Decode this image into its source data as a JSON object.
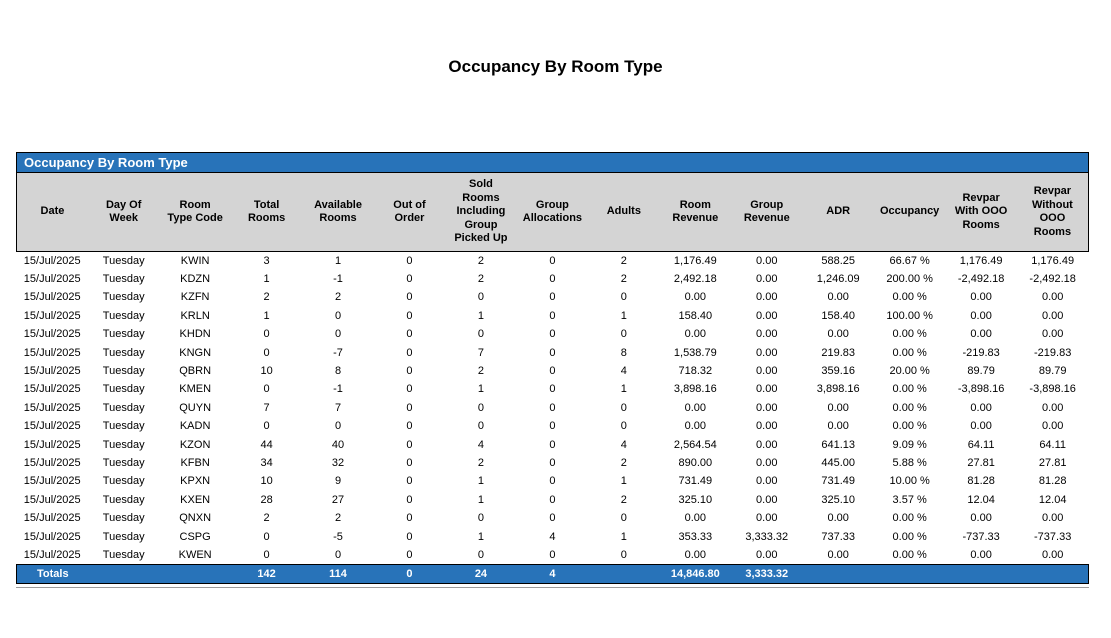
{
  "page_title": "Occupancy By Room Type",
  "colors": {
    "accent_blue": "#2873B9",
    "header_band_gray": "#D4D4D4",
    "totals_text": "#FFFFFF",
    "body_text": "#000000"
  },
  "table": {
    "title": "Occupancy By Room Type",
    "columns": [
      {
        "key": "date",
        "label": "Date"
      },
      {
        "key": "day-of-week",
        "label": "Day Of\nWeek"
      },
      {
        "key": "room-type-code",
        "label": "Room\nType Code"
      },
      {
        "key": "total-rooms",
        "label": "Total\nRooms"
      },
      {
        "key": "available-rooms",
        "label": "Available\nRooms"
      },
      {
        "key": "out-of-order",
        "label": "Out of\nOrder"
      },
      {
        "key": "sold-rooms",
        "label": "Sold\nRooms\nIncluding\nGroup\nPicked Up"
      },
      {
        "key": "group-allocations",
        "label": "Group\nAllocations"
      },
      {
        "key": "adults",
        "label": "Adults"
      },
      {
        "key": "room-revenue",
        "label": "Room\nRevenue"
      },
      {
        "key": "group-revenue",
        "label": "Group\nRevenue"
      },
      {
        "key": "adr",
        "label": "ADR"
      },
      {
        "key": "occupancy",
        "label": "Occupancy"
      },
      {
        "key": "revpar-with-ooo",
        "label": "Revpar\nWith OOO\nRooms"
      },
      {
        "key": "revpar-without-ooo",
        "label": "Revpar\nWithout\nOOO\nRooms"
      }
    ],
    "rows": [
      [
        "15/Jul/2025",
        "Tuesday",
        "KWIN",
        "3",
        "1",
        "0",
        "2",
        "0",
        "2",
        "1,176.49",
        "0.00",
        "588.25",
        "66.67 %",
        "1,176.49",
        "1,176.49"
      ],
      [
        "15/Jul/2025",
        "Tuesday",
        "KDZN",
        "1",
        "-1",
        "0",
        "2",
        "0",
        "2",
        "2,492.18",
        "0.00",
        "1,246.09",
        "200.00 %",
        "-2,492.18",
        "-2,492.18"
      ],
      [
        "15/Jul/2025",
        "Tuesday",
        "KZFN",
        "2",
        "2",
        "0",
        "0",
        "0",
        "0",
        "0.00",
        "0.00",
        "0.00",
        "0.00 %",
        "0.00",
        "0.00"
      ],
      [
        "15/Jul/2025",
        "Tuesday",
        "KRLN",
        "1",
        "0",
        "0",
        "1",
        "0",
        "1",
        "158.40",
        "0.00",
        "158.40",
        "100.00 %",
        "0.00",
        "0.00"
      ],
      [
        "15/Jul/2025",
        "Tuesday",
        "KHDN",
        "0",
        "0",
        "0",
        "0",
        "0",
        "0",
        "0.00",
        "0.00",
        "0.00",
        "0.00 %",
        "0.00",
        "0.00"
      ],
      [
        "15/Jul/2025",
        "Tuesday",
        "KNGN",
        "0",
        "-7",
        "0",
        "7",
        "0",
        "8",
        "1,538.79",
        "0.00",
        "219.83",
        "0.00 %",
        "-219.83",
        "-219.83"
      ],
      [
        "15/Jul/2025",
        "Tuesday",
        "QBRN",
        "10",
        "8",
        "0",
        "2",
        "0",
        "4",
        "718.32",
        "0.00",
        "359.16",
        "20.00 %",
        "89.79",
        "89.79"
      ],
      [
        "15/Jul/2025",
        "Tuesday",
        "KMEN",
        "0",
        "-1",
        "0",
        "1",
        "0",
        "1",
        "3,898.16",
        "0.00",
        "3,898.16",
        "0.00 %",
        "-3,898.16",
        "-3,898.16"
      ],
      [
        "15/Jul/2025",
        "Tuesday",
        "QUYN",
        "7",
        "7",
        "0",
        "0",
        "0",
        "0",
        "0.00",
        "0.00",
        "0.00",
        "0.00 %",
        "0.00",
        "0.00"
      ],
      [
        "15/Jul/2025",
        "Tuesday",
        "KADN",
        "0",
        "0",
        "0",
        "0",
        "0",
        "0",
        "0.00",
        "0.00",
        "0.00",
        "0.00 %",
        "0.00",
        "0.00"
      ],
      [
        "15/Jul/2025",
        "Tuesday",
        "KZON",
        "44",
        "40",
        "0",
        "4",
        "0",
        "4",
        "2,564.54",
        "0.00",
        "641.13",
        "9.09 %",
        "64.11",
        "64.11"
      ],
      [
        "15/Jul/2025",
        "Tuesday",
        "KFBN",
        "34",
        "32",
        "0",
        "2",
        "0",
        "2",
        "890.00",
        "0.00",
        "445.00",
        "5.88 %",
        "27.81",
        "27.81"
      ],
      [
        "15/Jul/2025",
        "Tuesday",
        "KPXN",
        "10",
        "9",
        "0",
        "1",
        "0",
        "1",
        "731.49",
        "0.00",
        "731.49",
        "10.00 %",
        "81.28",
        "81.28"
      ],
      [
        "15/Jul/2025",
        "Tuesday",
        "KXEN",
        "28",
        "27",
        "0",
        "1",
        "0",
        "2",
        "325.10",
        "0.00",
        "325.10",
        "3.57 %",
        "12.04",
        "12.04"
      ],
      [
        "15/Jul/2025",
        "Tuesday",
        "QNXN",
        "2",
        "2",
        "0",
        "0",
        "0",
        "0",
        "0.00",
        "0.00",
        "0.00",
        "0.00 %",
        "0.00",
        "0.00"
      ],
      [
        "15/Jul/2025",
        "Tuesday",
        "CSPG",
        "0",
        "-5",
        "0",
        "1",
        "4",
        "1",
        "353.33",
        "3,333.32",
        "737.33",
        "0.00 %",
        "-737.33",
        "-737.33"
      ],
      [
        "15/Jul/2025",
        "Tuesday",
        "KWEN",
        "0",
        "0",
        "0",
        "0",
        "0",
        "0",
        "0.00",
        "0.00",
        "0.00",
        "0.00 %",
        "0.00",
        "0.00"
      ]
    ],
    "totals": [
      "Totals",
      "",
      "",
      "142",
      "114",
      "0",
      "24",
      "4",
      "",
      "14,846.80",
      "3,333.32",
      "",
      "",
      "",
      ""
    ]
  }
}
